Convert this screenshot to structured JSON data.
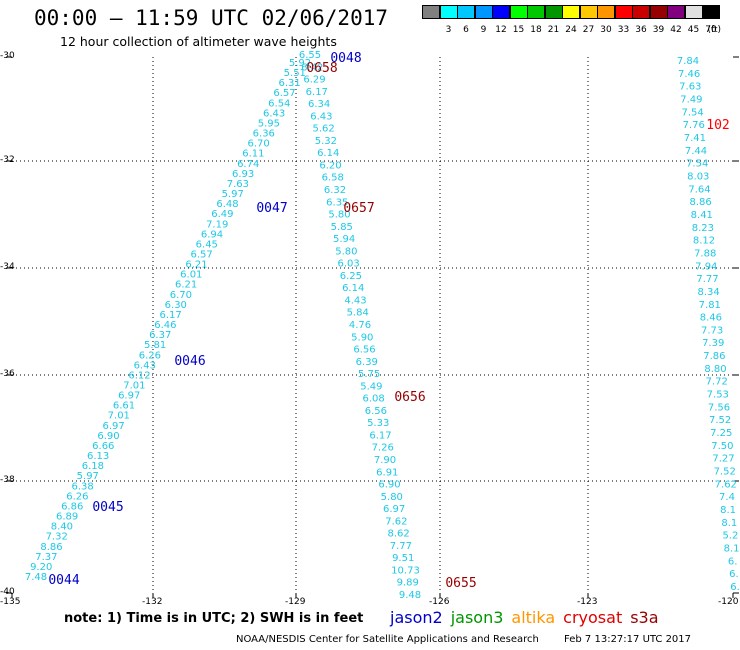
{
  "header": {
    "title": "00:00 – 11:59 UTC 02/06/2017",
    "subtitle": "12 hour collection of altimeter wave heights"
  },
  "color_scale": {
    "unit": "(ft)",
    "bins": [
      {
        "label": "",
        "color": "#808080"
      },
      {
        "label": "3",
        "color": "#00ffff"
      },
      {
        "label": "6",
        "color": "#00c8ff"
      },
      {
        "label": "9",
        "color": "#0096ff"
      },
      {
        "label": "12",
        "color": "#0000ff"
      },
      {
        "label": "15",
        "color": "#00ff00"
      },
      {
        "label": "18",
        "color": "#00c800"
      },
      {
        "label": "21",
        "color": "#009600"
      },
      {
        "label": "24",
        "color": "#ffff00"
      },
      {
        "label": "27",
        "color": "#ffc800"
      },
      {
        "label": "30",
        "color": "#ff9600"
      },
      {
        "label": "33",
        "color": "#ff0000"
      },
      {
        "label": "36",
        "color": "#c80000"
      },
      {
        "label": "39",
        "color": "#960000"
      },
      {
        "label": "42",
        "color": "#800080"
      },
      {
        "label": "45",
        "color": "#e0e0e0"
      },
      {
        "label": "70",
        "color": "#000000"
      }
    ]
  },
  "map": {
    "y_labels": [
      "-30",
      "-32",
      "-34",
      "-36",
      "-38",
      "-40"
    ],
    "x_labels": [
      "-135",
      "-132",
      "-129",
      "-126",
      "-123",
      "-120"
    ],
    "colors": {
      "cyan": "#1ec8e6",
      "blue": "#0000c8",
      "darkred": "#960000",
      "red": "#ff0000"
    },
    "tracks": [
      {
        "name": "jason-track-west",
        "color": "cyan",
        "values": [
          "7.48",
          "9.20",
          "7.37",
          "8.86",
          "7.32",
          "8.40",
          "6.89",
          "6.86",
          "6.26",
          "6.38",
          "5.97",
          "6.18",
          "6.13",
          "6.66",
          "6.90",
          "6.97",
          "7.01",
          "6.61",
          "6.97",
          "7.01",
          "6.12",
          "6.43",
          "6.26",
          "5.81",
          "6.37",
          "6.46",
          "6.17",
          "6.30",
          "6.70",
          "6.21",
          "6.01",
          "6.21",
          "6.57",
          "6.45",
          "6.94",
          "7.19",
          "6.49",
          "6.48",
          "5.97",
          "7.63",
          "6.93",
          "6.74",
          "6.11",
          "6.70",
          "6.36",
          "5.95",
          "6.43",
          "6.54",
          "6.57",
          "6.31",
          "5.51",
          "5.92"
        ]
      },
      {
        "name": "cryosat-track-middle",
        "color": "cyan",
        "values": [
          "6.55",
          "6.42",
          "6.29",
          "6.17",
          "6.34",
          "6.43",
          "5.62",
          "5.32",
          "6.14",
          "6.20",
          "6.58",
          "6.32",
          "6.35",
          "5.80",
          "5.85",
          "5.94",
          "5.80",
          "6.03",
          "6.25",
          "6.14",
          "4.43",
          "5.84",
          "4.76",
          "5.90",
          "6.56",
          "6.39",
          "5.75",
          "5.49",
          "6.08",
          "6.56",
          "5.33",
          "6.17",
          "7.26",
          "7.90",
          "6.91",
          "6.90",
          "5.80",
          "6.97",
          "7.62",
          "8.62",
          "7.77",
          "9.51",
          "10.73",
          "9.89",
          "9.48"
        ]
      },
      {
        "name": "jason-track-east",
        "color": "cyan",
        "values": [
          "7.84",
          "7.46",
          "7.63",
          "7.49",
          "7.54",
          "7.76",
          "7.41",
          "7.44",
          "7.54",
          "8.03",
          "7.64",
          "8.86",
          "8.41",
          "8.23",
          "8.12",
          "7.88",
          "7.94",
          "7.77",
          "8.34",
          "7.81",
          "8.46",
          "7.73",
          "7.39",
          "7.86",
          "8.80",
          "7.72",
          "7.53",
          "7.56",
          "7.52",
          "7.25",
          "7.50",
          "7.27",
          "7.52",
          "7.62",
          "7.4",
          "8.1",
          "8.1",
          "5.2",
          "8.1",
          "6.",
          "6.",
          "6."
        ]
      }
    ],
    "time_labels": [
      {
        "text": "0048",
        "color": "blue"
      },
      {
        "text": "0658",
        "color": "darkred"
      },
      {
        "text": "0047",
        "color": "blue"
      },
      {
        "text": "0657",
        "color": "darkred"
      },
      {
        "text": "0046",
        "color": "blue"
      },
      {
        "text": "0656",
        "color": "darkred"
      },
      {
        "text": "0045",
        "color": "blue"
      },
      {
        "text": "0044",
        "color": "blue"
      },
      {
        "text": "0655",
        "color": "darkred"
      },
      {
        "text": "102",
        "color": "red"
      }
    ]
  },
  "note": "note:  1) Time is in UTC;  2) SWH is in feet",
  "legend": [
    {
      "label": "jason2",
      "color": "#0000c8"
    },
    {
      "label": "jason3",
      "color": "#009600"
    },
    {
      "label": "altika",
      "color": "#ff9600"
    },
    {
      "label": "cryosat",
      "color": "#e00000"
    },
    {
      "label": "s3a",
      "color": "#960000"
    }
  ],
  "footer": {
    "credit": "NOAA/NESDIS Center for Satellite Applications and Research",
    "timestamp": "Feb  7 13:27:17 UTC 2017"
  }
}
